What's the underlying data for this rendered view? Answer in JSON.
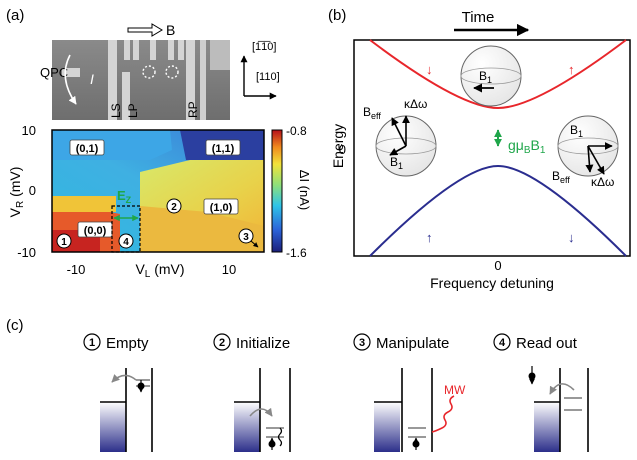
{
  "panel_a": {
    "panel_label": "(a)",
    "b_field_label": "B",
    "qpc_label": "QPC",
    "current_label": "I",
    "gate_labels": [
      "LS",
      "LP",
      "RP"
    ],
    "axis_up": "[1̅1̅0]",
    "axis_right": "[110]",
    "map": {
      "x_title": "V_L (mV)",
      "y_title": "V_R (mV)",
      "x_ticks": [
        "-10",
        "10"
      ],
      "y_ticks": [
        "10",
        "0",
        "-10"
      ],
      "colorbar_title": "ΔI (nA)",
      "colorbar_ticks": [
        "-0.8",
        "-1.6"
      ],
      "charge_states": [
        "(0,1)",
        "(1,1)",
        "(1,0)",
        "(0,0)"
      ],
      "markers": [
        "1",
        "2",
        "3",
        "4"
      ],
      "ez_label": "E_Z"
    }
  },
  "panel_b": {
    "panel_label": "(b)",
    "time_label": "Time",
    "y_title": "Energy",
    "y_tick": "0",
    "x_tick": "0",
    "x_title": "Frequency detuning",
    "gap_label": "gμ_B B_1",
    "sphere_labels": {
      "left_beff": "B_eff",
      "left_kdw": "κΔω",
      "left_b1": "B_1",
      "center_b1": "B_1",
      "right_b1": "B_1",
      "right_beff": "B_eff",
      "right_kdw": "κΔω"
    },
    "upper_arrows": [
      "↓",
      "↑"
    ],
    "lower_arrows": [
      "↑",
      "↓"
    ],
    "colors": {
      "upper": "#e8262b",
      "lower": "#2a2d8f",
      "gap": "#1fa64a"
    }
  },
  "panel_c": {
    "panel_label": "(c)",
    "steps": [
      {
        "number": "1",
        "label": "Empty"
      },
      {
        "number": "2",
        "label": "Initialize"
      },
      {
        "number": "3",
        "label": "Manipulate",
        "mw_label": "MW"
      },
      {
        "number": "4",
        "label": "Read out"
      }
    ]
  }
}
